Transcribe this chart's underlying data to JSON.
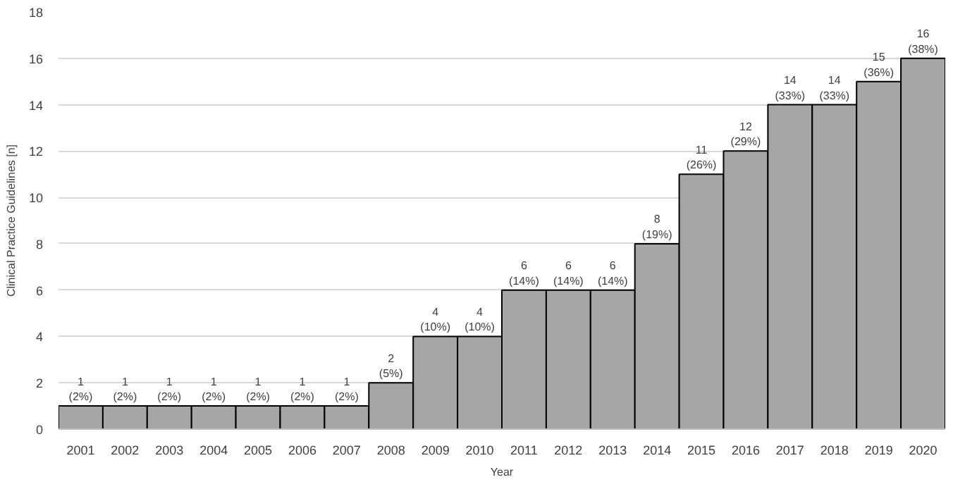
{
  "chart_data": {
    "type": "bar",
    "xlabel": "Year",
    "ylabel": "Clinical Practice Guidelines [n]",
    "categories": [
      "2001",
      "2002",
      "2003",
      "2004",
      "2005",
      "2006",
      "2007",
      "2008",
      "2009",
      "2010",
      "2011",
      "2012",
      "2013",
      "2014",
      "2015",
      "2016",
      "2017",
      "2018",
      "2019",
      "2020"
    ],
    "values": [
      1,
      1,
      1,
      1,
      1,
      1,
      1,
      2,
      4,
      4,
      6,
      6,
      6,
      8,
      11,
      12,
      14,
      14,
      15,
      16
    ],
    "value_labels": [
      "1\n(2%)",
      "1\n(2%)",
      "1\n(2%)",
      "1\n(2%)",
      "1\n(2%)",
      "1\n(2%)",
      "1\n(2%)",
      "2\n(5%)",
      "4\n(10%)",
      "4\n(10%)",
      "6\n(14%)",
      "6\n(14%)",
      "6\n(14%)",
      "8\n(19%)",
      "11\n(26%)",
      "12\n(29%)",
      "14\n(33%)",
      "14\n(33%)",
      "15\n(36%)",
      "16\n(38%)"
    ],
    "color": "#a6a6a6",
    "ylim": [
      0,
      18
    ],
    "yticks": [
      0,
      2,
      4,
      6,
      8,
      10,
      12,
      14,
      16,
      18
    ],
    "grid": "y"
  }
}
